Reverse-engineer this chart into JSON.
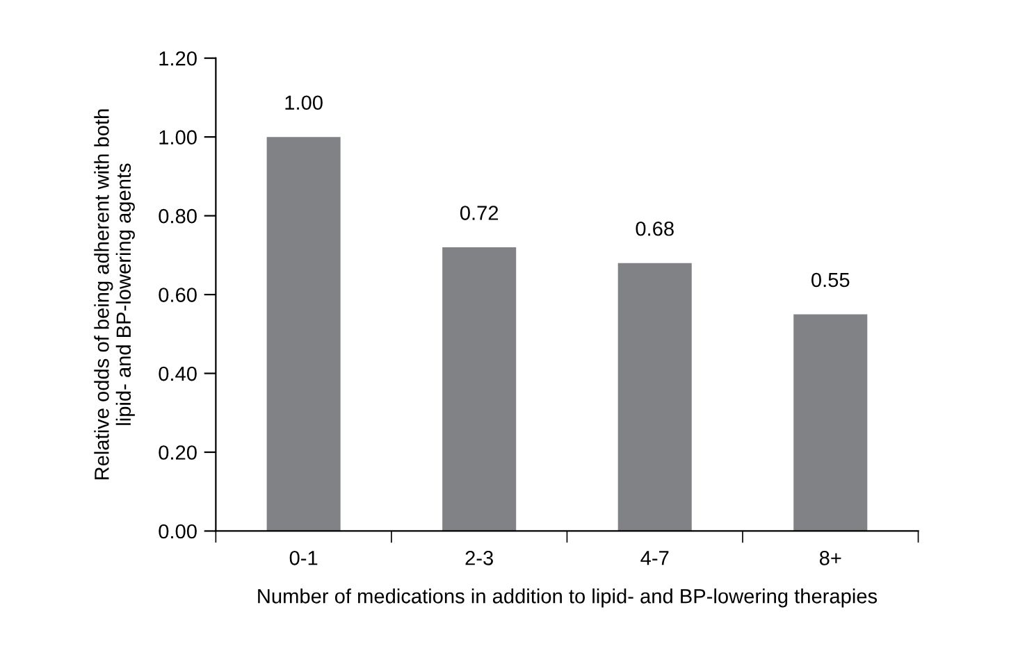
{
  "chart_data": {
    "type": "bar",
    "categories": [
      "0-1",
      "2-3",
      "4-7",
      "8+"
    ],
    "values": [
      1.0,
      0.72,
      0.68,
      0.55
    ],
    "value_labels": [
      "1.00",
      "0.72",
      "0.68",
      "0.55"
    ],
    "color": "#808285",
    "xlabel": "Number of medications in addition to lipid- and BP-lowering therapies",
    "ylabel": "Relative odds of being adherent with both\nlipid- and BP-lowering agents",
    "ylim": [
      0,
      1.2
    ],
    "yticks": [
      {
        "value": 0,
        "label": "0.00"
      },
      {
        "value": 0.2,
        "label": "0.20"
      },
      {
        "value": 0.4,
        "label": "0.40"
      },
      {
        "value": 0.6,
        "label": "0.60"
      },
      {
        "value": 0.8,
        "label": "0.80"
      },
      {
        "value": 1.0,
        "label": "1.00"
      },
      {
        "value": 1.2,
        "label": "1.20"
      }
    ],
    "grid": false,
    "legend": false
  }
}
